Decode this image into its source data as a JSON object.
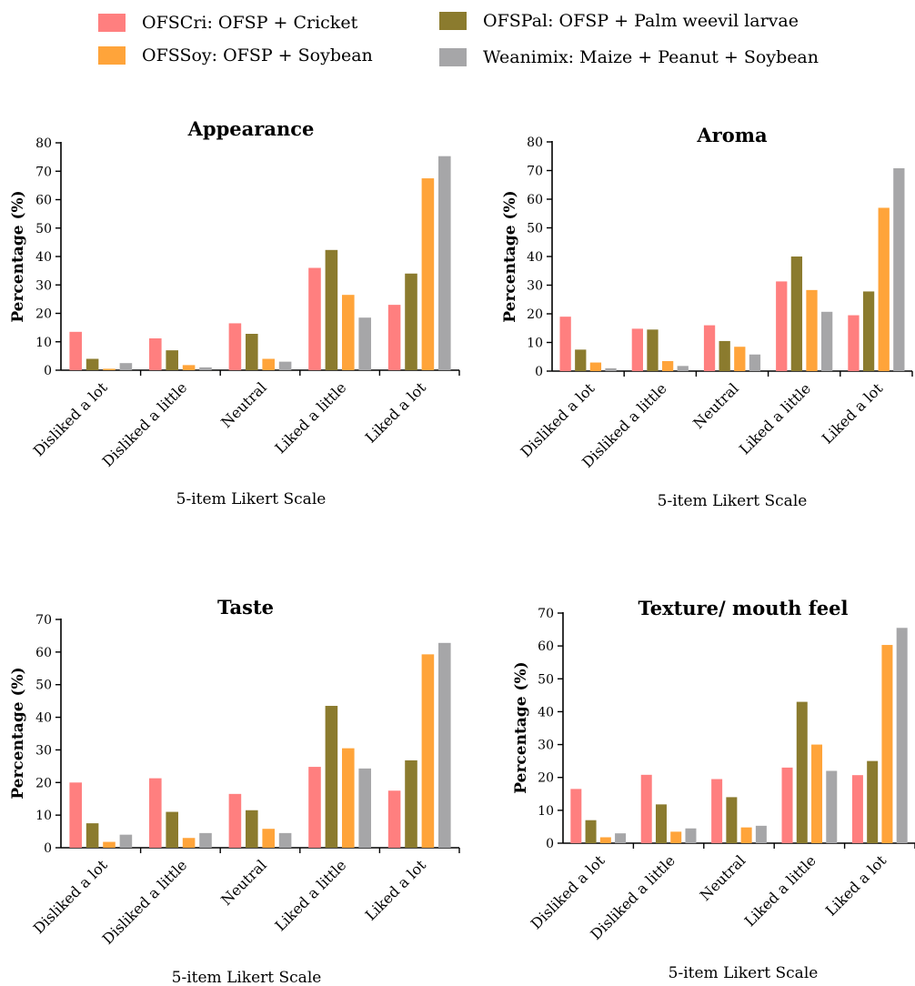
{
  "legend": [
    {
      "label": "OFSCri: OFSP + Cricket",
      "color": "#FF7F7F"
    },
    {
      "label": "OFSPal: OFSP + Palm weevil larvae",
      "color": "#8B7B2E"
    },
    {
      "label": "OFSSoy: OFSP + Soybean",
      "color": "#FFA43A"
    },
    {
      "label": "Weanimix: Maize + Peanut + Soybean",
      "color": "#A6A6A8"
    }
  ],
  "chart_data": [
    {
      "type": "bar",
      "title": "Appearance",
      "xlabel": "5-item Likert Scale",
      "ylabel": "Percentage (%)",
      "ylim": [
        0,
        80
      ],
      "yticks": [
        0,
        10,
        20,
        30,
        40,
        50,
        60,
        70,
        80
      ],
      "categories": [
        "Disliked a lot",
        "Disliked a little",
        "Neutral",
        "Liked a little",
        "Liked a lot"
      ],
      "series": [
        {
          "name": "OFSCri: OFSP + Cricket",
          "values": [
            13.5,
            11.2,
            16.5,
            36,
            23
          ]
        },
        {
          "name": "OFSPal: OFSP + Palm weevil larvae",
          "values": [
            4,
            7,
            12.8,
            42.3,
            34
          ]
        },
        {
          "name": "OFSSoy: OFSP + Soybean",
          "values": [
            0.5,
            1.8,
            4,
            26.5,
            67.5
          ]
        },
        {
          "name": "Weanimix: Maize + Peanut + Soybean",
          "values": [
            2.5,
            1,
            3,
            18.5,
            75.3
          ]
        }
      ]
    },
    {
      "type": "bar",
      "title": "Aroma",
      "xlabel": "5-item Likert Scale",
      "ylabel": "Percentage (%)",
      "ylim": [
        0,
        80
      ],
      "yticks": [
        0,
        10,
        20,
        30,
        40,
        50,
        60,
        70,
        80
      ],
      "categories": [
        "Disliked a lot",
        "Disliked a little",
        "Neutral",
        "Liked a little",
        "Liked a lot"
      ],
      "series": [
        {
          "name": "OFSCri: OFSP + Cricket",
          "values": [
            19,
            14.8,
            16,
            31.3,
            19.5
          ]
        },
        {
          "name": "OFSPal: OFSP + Palm weevil larvae",
          "values": [
            7.5,
            14.5,
            10.5,
            40,
            27.8
          ]
        },
        {
          "name": "OFSSoy: OFSP + Soybean",
          "values": [
            3,
            3.5,
            8.5,
            28.3,
            57
          ]
        },
        {
          "name": "Weanimix: Maize + Peanut + Soybean",
          "values": [
            1,
            1.8,
            5.8,
            20.7,
            70.8
          ]
        }
      ]
    },
    {
      "type": "bar",
      "title": "Taste",
      "xlabel": "5-item Likert Scale",
      "ylabel": "Percentage (%)",
      "ylim": [
        0,
        70
      ],
      "yticks": [
        0,
        10,
        20,
        30,
        40,
        50,
        60,
        70
      ],
      "categories": [
        "Disliked a lot",
        "Disliked a little",
        "Neutral",
        "Liked a little",
        "Liked a lot"
      ],
      "series": [
        {
          "name": "OFSCri: OFSP + Cricket",
          "values": [
            20,
            21.3,
            16.5,
            24.8,
            17.5
          ]
        },
        {
          "name": "OFSPal: OFSP + Palm weevil larvae",
          "values": [
            7.5,
            11,
            11.5,
            43.5,
            26.8
          ]
        },
        {
          "name": "OFSSoy: OFSP + Soybean",
          "values": [
            1.8,
            3,
            5.8,
            30.5,
            59.3
          ]
        },
        {
          "name": "Weanimix: Maize + Peanut + Soybean",
          "values": [
            4,
            4.5,
            4.5,
            24.3,
            62.8
          ]
        }
      ]
    },
    {
      "type": "bar",
      "title": "Texture/ mouth feel",
      "xlabel": "5-item Likert Scale",
      "ylabel": "Percentage (%)",
      "ylim": [
        0,
        70
      ],
      "yticks": [
        0,
        10,
        20,
        30,
        40,
        50,
        60,
        70
      ],
      "categories": [
        "Disliked a lot",
        "Disliked a little",
        "Neutral",
        "Liked a little",
        "Liked a lot"
      ],
      "series": [
        {
          "name": "OFSCri: OFSP + Cricket",
          "values": [
            16.5,
            20.8,
            19.5,
            23,
            20.7
          ]
        },
        {
          "name": "OFSPal: OFSP + Palm weevil larvae",
          "values": [
            7,
            11.8,
            14,
            43,
            25
          ]
        },
        {
          "name": "OFSSoy: OFSP + Soybean",
          "values": [
            1.8,
            3.5,
            4.8,
            30,
            60.3
          ]
        },
        {
          "name": "Weanimix: Maize + Peanut + Soybean",
          "values": [
            3,
            4.5,
            5.3,
            22,
            65.5
          ]
        }
      ]
    }
  ]
}
